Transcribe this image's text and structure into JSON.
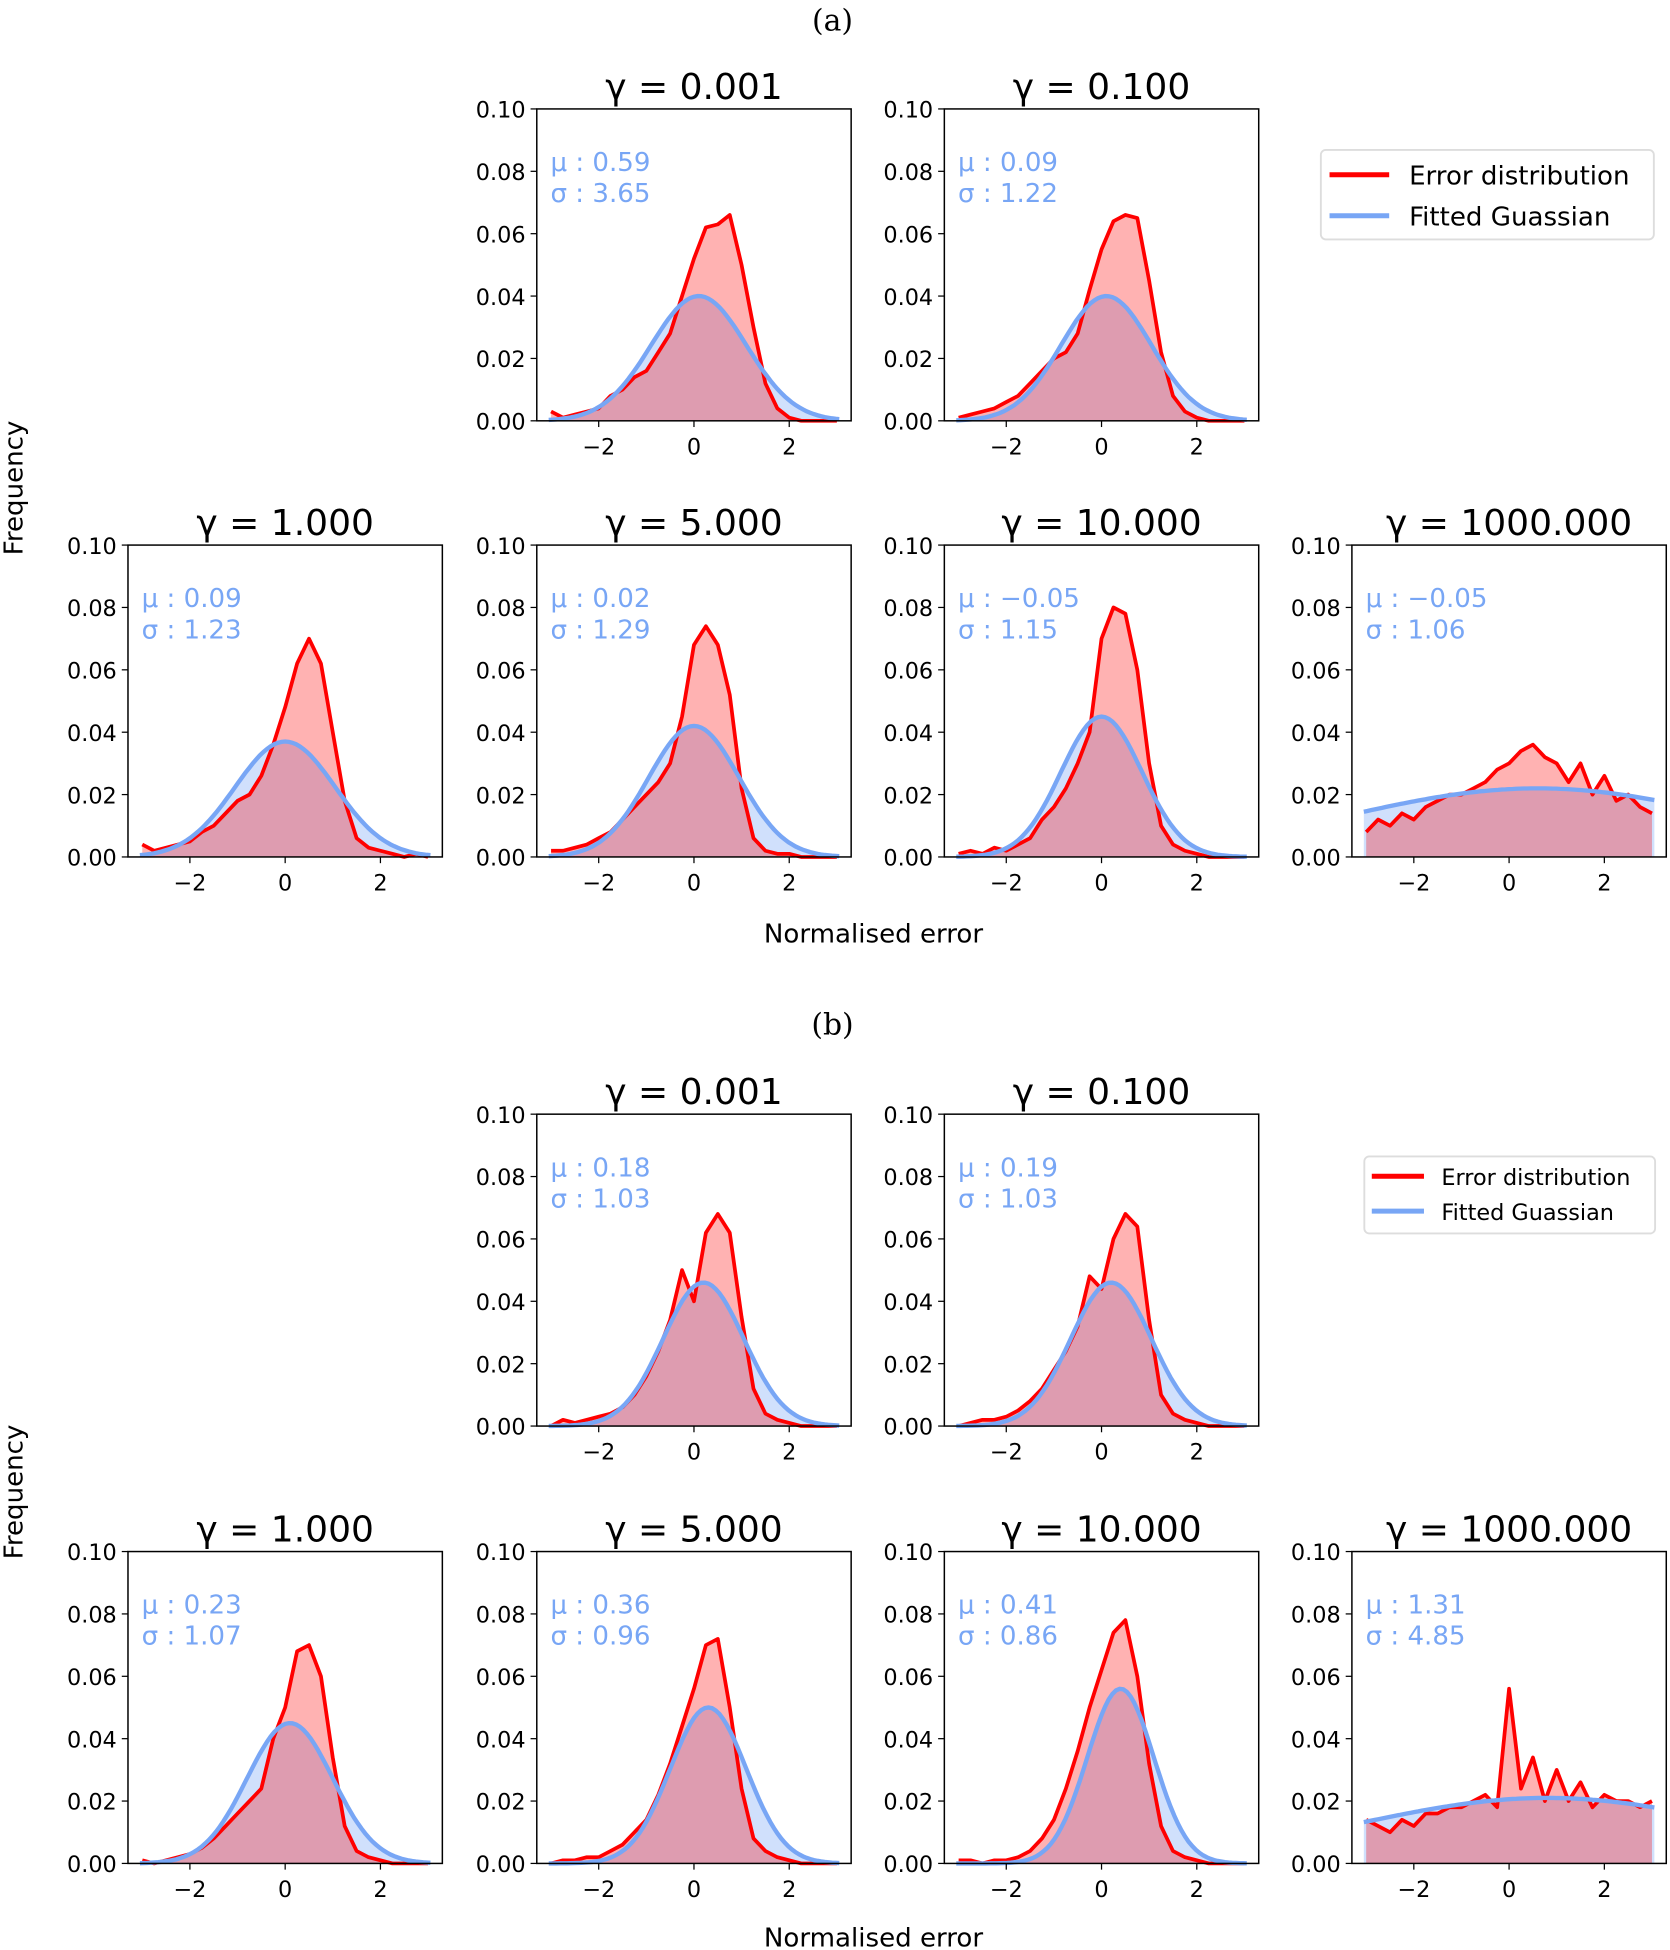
{
  "chart_data": {
    "type": "area",
    "xlabel": "Normalised error",
    "ylabel": "Frequency",
    "xlim": [
      -3.3,
      3.3
    ],
    "ylim": [
      0,
      0.1
    ],
    "xticks": [
      -2,
      0,
      2
    ],
    "xtick_labels": [
      "−2",
      "0",
      "2"
    ],
    "yticks": [
      0,
      0.02,
      0.04,
      0.06,
      0.08,
      0.1
    ],
    "ytick_labels": [
      "0.00",
      "0.02",
      "0.04",
      "0.06",
      "0.08",
      "0.10"
    ],
    "x": [
      -3.0,
      -2.75,
      -2.5,
      -2.25,
      -2.0,
      -1.75,
      -1.5,
      -1.25,
      -1.0,
      -0.75,
      -0.5,
      -0.25,
      0.0,
      0.25,
      0.5,
      0.75,
      1.0,
      1.25,
      1.5,
      1.75,
      2.0,
      2.25,
      2.5,
      2.75,
      3.0
    ],
    "legend": {
      "entries": [
        "Error distribution",
        "Fitted Guassian"
      ],
      "position": "right"
    },
    "colors": {
      "error": "#ff0000",
      "fit": "#78a6f5"
    },
    "figures": [
      {
        "label": "(a)",
        "panels": [
          {
            "title": "γ = 0.001",
            "mu": "μ : 0.59",
            "sigma": "σ : 3.65",
            "fit": {
              "center": 0.1,
              "peak": 0.04,
              "sd": 1.0
            },
            "error": [
              0.003,
              0.001,
              0.002,
              0.003,
              0.004,
              0.008,
              0.01,
              0.014,
              0.016,
              0.022,
              0.028,
              0.04,
              0.052,
              0.062,
              0.063,
              0.066,
              0.05,
              0.03,
              0.012,
              0.004,
              0.001,
              0,
              0,
              0,
              0
            ]
          },
          {
            "title": "γ = 0.100",
            "mu": "μ : 0.09",
            "sigma": "σ : 1.22",
            "fit": {
              "center": 0.1,
              "peak": 0.04,
              "sd": 0.95
            },
            "error": [
              0.001,
              0.002,
              0.003,
              0.004,
              0.006,
              0.008,
              0.012,
              0.016,
              0.02,
              0.022,
              0.028,
              0.042,
              0.055,
              0.064,
              0.066,
              0.065,
              0.045,
              0.022,
              0.008,
              0.003,
              0.001,
              0,
              0,
              0,
              0
            ]
          },
          {
            "title": "γ = 1.000",
            "mu": "μ : 0.09",
            "sigma": "σ : 1.23",
            "fit": {
              "center": 0.0,
              "peak": 0.037,
              "sd": 1.05
            },
            "error": [
              0.004,
              0.002,
              0.003,
              0.004,
              0.005,
              0.008,
              0.01,
              0.014,
              0.018,
              0.02,
              0.026,
              0.036,
              0.048,
              0.062,
              0.07,
              0.062,
              0.04,
              0.018,
              0.006,
              0.003,
              0.002,
              0.001,
              0,
              0.001,
              0
            ]
          },
          {
            "title": "γ = 5.000",
            "mu": "μ : 0.02",
            "sigma": "σ : 1.29",
            "fit": {
              "center": 0.0,
              "peak": 0.042,
              "sd": 0.95
            },
            "error": [
              0.002,
              0.002,
              0.003,
              0.004,
              0.006,
              0.008,
              0.012,
              0.016,
              0.02,
              0.024,
              0.03,
              0.045,
              0.068,
              0.074,
              0.068,
              0.052,
              0.022,
              0.006,
              0.002,
              0.001,
              0.001,
              0,
              0,
              0,
              0
            ]
          },
          {
            "title": "γ = 10.000",
            "mu": "μ : −0.05",
            "sigma": "σ : 1.15",
            "fit": {
              "center": 0.0,
              "peak": 0.045,
              "sd": 0.85
            },
            "error": [
              0.001,
              0.002,
              0.001,
              0.003,
              0.002,
              0.004,
              0.006,
              0.012,
              0.016,
              0.022,
              0.03,
              0.04,
              0.07,
              0.08,
              0.078,
              0.06,
              0.03,
              0.01,
              0.004,
              0.002,
              0.001,
              0,
              0,
              0,
              0
            ]
          },
          {
            "title": "γ = 1000.000",
            "mu": "μ : −0.05",
            "sigma": "σ : 1.06",
            "fit": {
              "center": 0.6,
              "peak": 0.022,
              "sd": 4.0
            },
            "error": [
              0.008,
              0.012,
              0.01,
              0.014,
              0.012,
              0.016,
              0.018,
              0.02,
              0.02,
              0.022,
              0.024,
              0.028,
              0.03,
              0.034,
              0.036,
              0.032,
              0.03,
              0.024,
              0.03,
              0.02,
              0.026,
              0.018,
              0.02,
              0.016,
              0.014
            ]
          }
        ]
      },
      {
        "label": "(b)",
        "panels": [
          {
            "title": "γ = 0.001",
            "mu": "μ : 0.18",
            "sigma": "σ : 1.03",
            "fit": {
              "center": 0.2,
              "peak": 0.046,
              "sd": 0.85
            },
            "error": [
              0,
              0.002,
              0.001,
              0.002,
              0.003,
              0.004,
              0.006,
              0.01,
              0.016,
              0.024,
              0.034,
              0.05,
              0.04,
              0.062,
              0.068,
              0.062,
              0.035,
              0.012,
              0.004,
              0.002,
              0.001,
              0,
              0,
              0,
              0
            ]
          },
          {
            "title": "γ = 0.100",
            "mu": "μ : 0.19",
            "sigma": "σ : 1.03",
            "fit": {
              "center": 0.2,
              "peak": 0.046,
              "sd": 0.85
            },
            "error": [
              0,
              0.001,
              0.002,
              0.002,
              0.003,
              0.005,
              0.008,
              0.012,
              0.018,
              0.024,
              0.032,
              0.048,
              0.044,
              0.06,
              0.068,
              0.064,
              0.034,
              0.01,
              0.004,
              0.002,
              0.001,
              0,
              0,
              0,
              0
            ]
          },
          {
            "title": "γ = 1.000",
            "mu": "μ : 0.23",
            "sigma": "σ : 1.07",
            "fit": {
              "center": 0.1,
              "peak": 0.045,
              "sd": 0.9
            },
            "error": [
              0.001,
              0,
              0.001,
              0.002,
              0.003,
              0.005,
              0.008,
              0.012,
              0.016,
              0.02,
              0.024,
              0.04,
              0.05,
              0.068,
              0.07,
              0.06,
              0.034,
              0.012,
              0.004,
              0.002,
              0.001,
              0,
              0,
              0,
              0
            ]
          },
          {
            "title": "γ = 5.000",
            "mu": "μ : 0.36",
            "sigma": "σ : 0.96",
            "fit": {
              "center": 0.3,
              "peak": 0.05,
              "sd": 0.8
            },
            "error": [
              0,
              0.001,
              0.001,
              0.002,
              0.002,
              0.004,
              0.006,
              0.01,
              0.014,
              0.022,
              0.032,
              0.044,
              0.056,
              0.07,
              0.072,
              0.05,
              0.024,
              0.008,
              0.004,
              0.002,
              0.001,
              0,
              0,
              0,
              0
            ]
          },
          {
            "title": "γ = 10.000",
            "mu": "μ : 0.41",
            "sigma": "σ : 0.86",
            "fit": {
              "center": 0.4,
              "peak": 0.056,
              "sd": 0.7
            },
            "error": [
              0.001,
              0.001,
              0,
              0.001,
              0.001,
              0.002,
              0.004,
              0.008,
              0.014,
              0.024,
              0.036,
              0.05,
              0.062,
              0.074,
              0.078,
              0.06,
              0.032,
              0.012,
              0.004,
              0.002,
              0.001,
              0,
              0,
              0,
              0
            ]
          },
          {
            "title": "γ = 1000.000",
            "mu": "μ : 1.31",
            "sigma": "σ : 4.85",
            "fit": {
              "center": 0.8,
              "peak": 0.021,
              "sd": 4.0
            },
            "error": [
              0.014,
              0.012,
              0.01,
              0.014,
              0.012,
              0.016,
              0.016,
              0.018,
              0.018,
              0.02,
              0.022,
              0.018,
              0.056,
              0.024,
              0.034,
              0.02,
              0.03,
              0.02,
              0.026,
              0.018,
              0.022,
              0.02,
              0.02,
              0.018,
              0.02
            ]
          }
        ]
      }
    ]
  }
}
